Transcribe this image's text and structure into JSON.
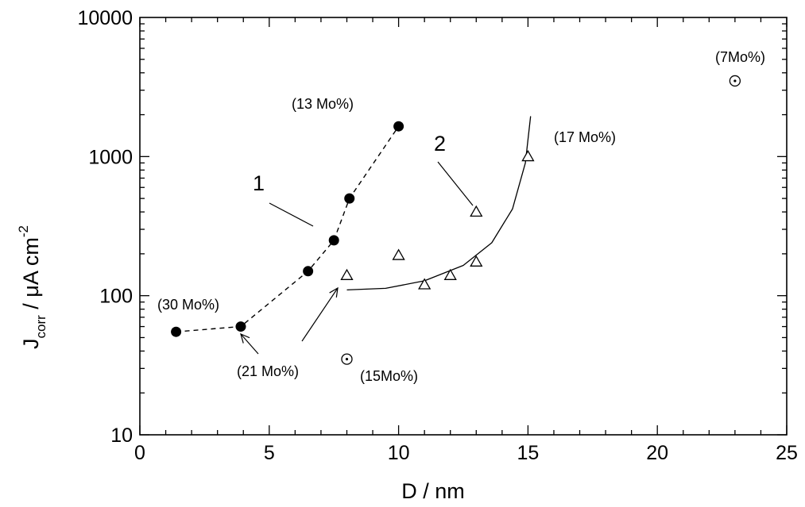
{
  "chart_data": {
    "type": "scatter",
    "title": "",
    "xlabel": "D / nm",
    "ylabel": {
      "main": "J",
      "sub": "corr",
      "rest": " / μA cm",
      "sup": "-2"
    },
    "xlim": [
      0,
      25
    ],
    "ylim": [
      10,
      10000
    ],
    "yscale": "log",
    "grid": false,
    "x_ticks": [
      0,
      5,
      10,
      15,
      20,
      25
    ],
    "x_tick_labels": [
      "0",
      "5",
      "10",
      "15",
      "20",
      "25"
    ],
    "y_ticks": [
      10,
      100,
      1000,
      10000
    ],
    "y_tick_labels": [
      "10",
      "100",
      "1000",
      "10000"
    ],
    "series": [
      {
        "marker": "filled-circle",
        "line": "dashed",
        "x": [
          1.4,
          3.9,
          6.5,
          7.5,
          8.1,
          10.0
        ],
        "y": [
          55,
          60,
          150,
          250,
          500,
          1650
        ]
      },
      {
        "marker": "open-triangle",
        "line": "solid-arc",
        "x": [
          8.0,
          10.0,
          11.0,
          12.0,
          13.0,
          13.0,
          15.0
        ],
        "y": [
          140,
          195,
          120,
          140,
          175,
          400,
          1000
        ]
      },
      {
        "marker": "dotted-circle",
        "line": "none",
        "x": [
          8.0,
          23.0
        ],
        "y": [
          35,
          3500
        ]
      }
    ],
    "annotations": [
      {
        "text": "(13 Mo%)"
      },
      {
        "text": "(17 Mo%)"
      },
      {
        "text": "(7Mo%)"
      },
      {
        "text": "(30 Mo%)"
      },
      {
        "text": "(21 Mo%)"
      },
      {
        "text": "(15Mo%)"
      },
      {
        "text": "1"
      },
      {
        "text": "2"
      }
    ]
  }
}
